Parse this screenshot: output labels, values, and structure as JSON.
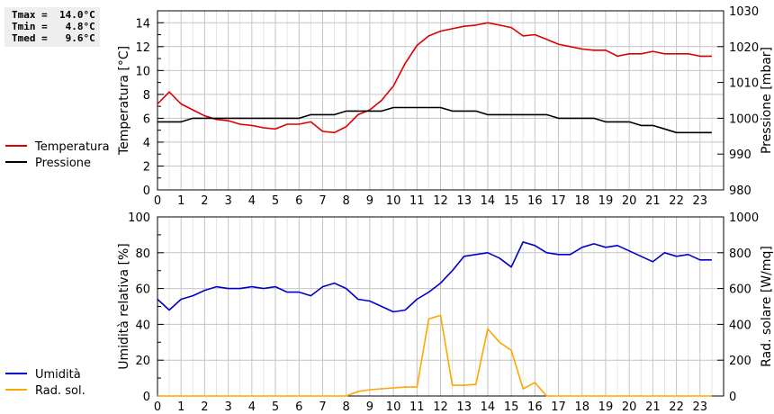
{
  "stats": {
    "tmax": "Tmax =  14.0°C",
    "tmin": "Tmin =   4.8°C",
    "tmed": "Tmed =   9.6°C"
  },
  "chart_data": [
    {
      "type": "line",
      "x_range": [
        0,
        24
      ],
      "x_ticks": [
        "0",
        "1",
        "2",
        "3",
        "4",
        "5",
        "6",
        "7",
        "8",
        "9",
        "10",
        "11",
        "12",
        "13",
        "14",
        "15",
        "16",
        "17",
        "18",
        "19",
        "20",
        "21",
        "22",
        "23"
      ],
      "ylabel_left": "Temperatura [°C]",
      "ylabel_right": "Pressione [mbar]",
      "ylim_left": [
        0,
        15
      ],
      "ylim_right": [
        980,
        1030
      ],
      "yticks_left": [
        0,
        2,
        4,
        6,
        8,
        10,
        12,
        14
      ],
      "yticks_right": [
        980,
        990,
        1000,
        1010,
        1020,
        1030
      ],
      "grid": true,
      "legend_placement": "left",
      "series": [
        {
          "name": "Temperatura",
          "axis": "left",
          "color": "#dd0000",
          "x": [
            0,
            0.5,
            1,
            1.5,
            2,
            2.5,
            3,
            3.5,
            4,
            4.5,
            5,
            5.5,
            6,
            6.5,
            7,
            7.5,
            8,
            8.5,
            9,
            9.5,
            10,
            10.5,
            11,
            11.5,
            12,
            12.5,
            13,
            13.5,
            14,
            14.5,
            15,
            15.5,
            16,
            16.5,
            17,
            17.5,
            18,
            18.5,
            19,
            19.5,
            20,
            20.5,
            21,
            21.5,
            22,
            22.5,
            23,
            23.5
          ],
          "values": [
            7.2,
            8.2,
            7.2,
            6.7,
            6.2,
            5.9,
            5.8,
            5.5,
            5.4,
            5.2,
            5.1,
            5.5,
            5.5,
            5.7,
            4.9,
            4.8,
            5.3,
            6.3,
            6.7,
            7.5,
            8.7,
            10.6,
            12.1,
            12.9,
            13.3,
            13.5,
            13.7,
            13.8,
            14.0,
            13.8,
            13.6,
            12.9,
            13.0,
            12.6,
            12.2,
            12.0,
            11.8,
            11.7,
            11.7,
            11.2,
            11.4,
            11.4,
            11.6,
            11.4,
            11.4,
            11.4,
            11.2,
            11.2
          ]
        },
        {
          "name": "Pressione",
          "axis": "right",
          "color": "#000000",
          "x": [
            0,
            0.5,
            1,
            1.5,
            2,
            2.5,
            3,
            3.5,
            4,
            4.5,
            5,
            5.5,
            6,
            6.5,
            7,
            7.5,
            8,
            8.5,
            9,
            9.5,
            10,
            10.5,
            11,
            11.5,
            12,
            12.5,
            13,
            13.5,
            14,
            14.5,
            15,
            15.5,
            16,
            16.5,
            17,
            17.5,
            18,
            18.5,
            19,
            19.5,
            20,
            20.5,
            21,
            21.5,
            22,
            22.5,
            23,
            23.5
          ],
          "values": [
            999,
            999,
            999,
            1000,
            1000,
            1000,
            1000,
            1000,
            1000,
            1000,
            1000,
            1000,
            1000,
            1001,
            1001,
            1001,
            1002,
            1002,
            1002,
            1002,
            1003,
            1003,
            1003,
            1003,
            1003,
            1002,
            1002,
            1002,
            1001,
            1001,
            1001,
            1001,
            1001,
            1001,
            1000,
            1000,
            1000,
            1000,
            999,
            999,
            999,
            998,
            998,
            997,
            996,
            996,
            996,
            996
          ]
        }
      ]
    },
    {
      "type": "line",
      "x_range": [
        0,
        24
      ],
      "x_ticks": [
        "0",
        "1",
        "2",
        "3",
        "4",
        "5",
        "6",
        "7",
        "8",
        "9",
        "10",
        "11",
        "12",
        "13",
        "14",
        "15",
        "16",
        "17",
        "18",
        "19",
        "20",
        "21",
        "22",
        "23"
      ],
      "ylabel_left": "Umidità relativa [%]",
      "ylabel_right": "Rad. solare [W/mq]",
      "ylim_left": [
        0,
        100
      ],
      "ylim_right": [
        0,
        1000
      ],
      "yticks_left": [
        0,
        20,
        40,
        60,
        80,
        100
      ],
      "yticks_right": [
        0,
        200,
        400,
        600,
        800,
        1000
      ],
      "grid": true,
      "legend_placement": "left",
      "series": [
        {
          "name": "Umidità",
          "axis": "left",
          "color": "#0000cc",
          "x": [
            0,
            0.5,
            1,
            1.5,
            2,
            2.5,
            3,
            3.5,
            4,
            4.5,
            5,
            5.5,
            6,
            6.5,
            7,
            7.5,
            8,
            8.5,
            9,
            9.5,
            10,
            10.5,
            11,
            11.5,
            12,
            12.5,
            13,
            13.5,
            14,
            14.5,
            15,
            15.5,
            16,
            16.5,
            17,
            17.5,
            18,
            18.5,
            19,
            19.5,
            20,
            20.5,
            21,
            21.5,
            22,
            22.5,
            23,
            23.5
          ],
          "values": [
            54,
            48,
            54,
            56,
            59,
            61,
            60,
            60,
            61,
            60,
            61,
            58,
            58,
            56,
            61,
            63,
            60,
            54,
            53,
            50,
            47,
            48,
            54,
            58,
            63,
            70,
            78,
            79,
            80,
            77,
            72,
            86,
            84,
            80,
            79,
            79,
            83,
            85,
            83,
            84,
            81,
            78,
            75,
            80,
            78,
            79,
            76,
            76
          ]
        },
        {
          "name": "Rad. sol.",
          "axis": "right",
          "color": "#ffa500",
          "x": [
            0,
            0.5,
            1,
            1.5,
            2,
            2.5,
            3,
            3.5,
            4,
            4.5,
            5,
            5.5,
            6,
            6.5,
            7,
            7.5,
            8,
            8.5,
            9,
            9.5,
            10,
            10.5,
            11,
            11.5,
            12,
            12.5,
            13,
            13.5,
            14,
            14.5,
            15,
            15.5,
            16,
            16.5,
            17,
            17.5,
            18,
            18.5,
            19,
            19.5,
            20,
            20.5,
            21,
            21.5,
            22,
            22.5,
            23,
            23.5
          ],
          "values": [
            0,
            0,
            0,
            0,
            0,
            0,
            0,
            0,
            0,
            0,
            0,
            0,
            0,
            0,
            0,
            0,
            0,
            25,
            35,
            40,
            45,
            50,
            50,
            430,
            450,
            60,
            60,
            65,
            375,
            300,
            255,
            40,
            75,
            0,
            0,
            0,
            0,
            0,
            0,
            0,
            0,
            0,
            0,
            0,
            0,
            0,
            0,
            0
          ]
        }
      ]
    }
  ]
}
